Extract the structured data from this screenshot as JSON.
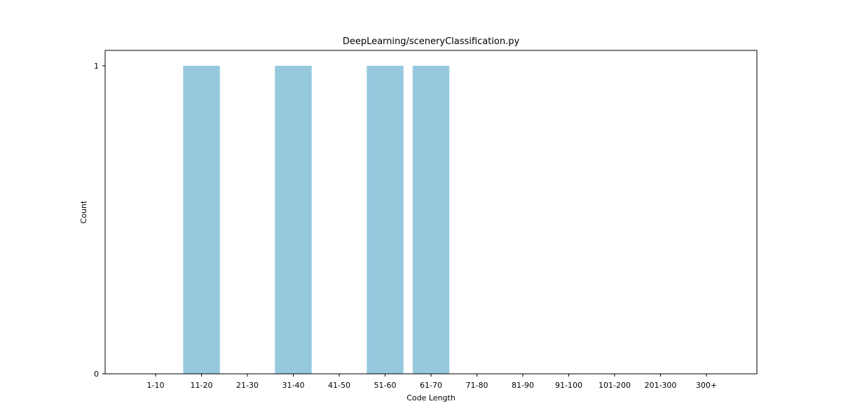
{
  "chart_data": {
    "type": "bar",
    "title": "DeepLearning/sceneryClassification.py",
    "xlabel": "Code Length",
    "ylabel": "Count",
    "categories": [
      "1-10",
      "11-20",
      "21-30",
      "31-40",
      "41-50",
      "51-60",
      "61-70",
      "71-80",
      "81-90",
      "91-100",
      "101-200",
      "201-300",
      "300+"
    ],
    "values": [
      0,
      1,
      0,
      1,
      0,
      1,
      1,
      0,
      0,
      0,
      0,
      0,
      0
    ],
    "ylim": [
      0,
      1.05
    ],
    "yticks": [
      0,
      1
    ],
    "bar_color": "#96c9de",
    "grid": false,
    "legend": "none"
  }
}
